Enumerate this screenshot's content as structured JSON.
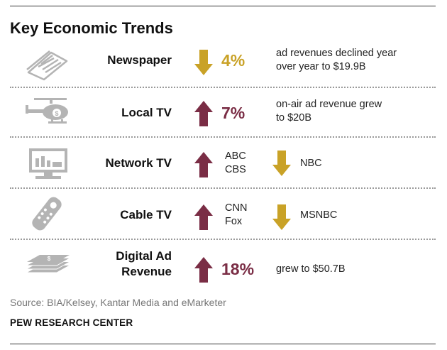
{
  "title": "Key Economic Trends",
  "colors": {
    "down": "#c9a227",
    "up": "#7a2d45",
    "icon": "#b4b4b4",
    "text": "#222222"
  },
  "rows": [
    {
      "icon": "newspaper-icon",
      "label": "Newspaper",
      "direction": "down",
      "pct": "4%",
      "desc": [
        "ad revenues declined year",
        "over year to $19.9B"
      ]
    },
    {
      "icon": "helicopter-icon",
      "label": "Local TV",
      "direction": "up",
      "pct": "7%",
      "desc": [
        "on-air ad revenue grew",
        "to $20B"
      ]
    },
    {
      "icon": "monitor-icon",
      "label": "Network TV",
      "up_names": [
        "ABC",
        "CBS"
      ],
      "down_names": [
        "NBC"
      ]
    },
    {
      "icon": "remote-control-icon",
      "label": "Cable TV",
      "up_names": [
        "CNN",
        "Fox"
      ],
      "down_names": [
        "MSNBC"
      ]
    },
    {
      "icon": "money-stack-icon",
      "label": [
        "Digital Ad",
        "Revenue"
      ],
      "direction": "up",
      "pct": "18%",
      "desc": [
        "grew to $50.7B"
      ]
    }
  ],
  "source": "Source: BIA/Kelsey, Kantar Media and eMarketer",
  "brand": "PEW RESEARCH CENTER"
}
